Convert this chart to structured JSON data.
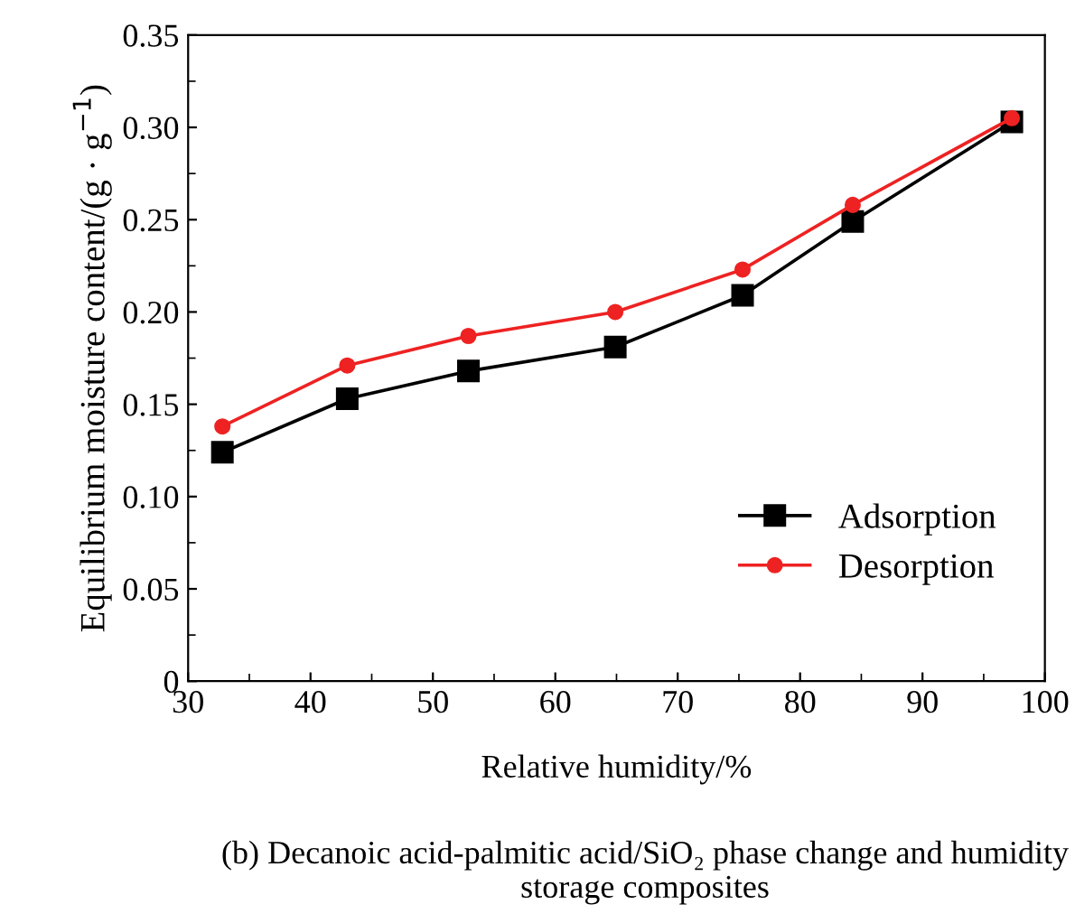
{
  "chart_data": {
    "type": "line",
    "title": "(b) Decanoic acid-palmitic acid/SiO₂ phase change and humidity storage composites",
    "xlabel": "Relative humidity/%",
    "ylabel": "Equilibrium moisture content/(g · g$^{−1}$)",
    "x": [
      32.8,
      43,
      52.9,
      64.9,
      75.3,
      84.3,
      97.3
    ],
    "series": [
      {
        "name": "Adsorption",
        "color": "#000000",
        "marker": "square",
        "values": [
          0.124,
          0.153,
          0.168,
          0.181,
          0.209,
          0.249,
          0.303
        ]
      },
      {
        "name": "Desorption",
        "color": "#ee2222",
        "marker": "circle",
        "values": [
          0.138,
          0.171,
          0.187,
          0.2,
          0.223,
          0.258,
          0.305
        ]
      }
    ],
    "xlim": [
      30,
      100
    ],
    "xticks": [
      30,
      40,
      50,
      60,
      70,
      80,
      90,
      100
    ],
    "ylim": [
      0,
      0.35
    ],
    "yticks": [
      {
        "value": 0,
        "label": "0"
      },
      {
        "value": 0.05,
        "label": "0.05"
      },
      {
        "value": 0.1,
        "label": "0.10"
      },
      {
        "value": 0.15,
        "label": "0.15"
      },
      {
        "value": 0.2,
        "label": "0.20"
      },
      {
        "value": 0.25,
        "label": "0.25"
      },
      {
        "value": 0.3,
        "label": "0.30"
      },
      {
        "value": 0.35,
        "label": "0.35"
      }
    ],
    "grid": false,
    "legend": "bottom right",
    "line_style": "solid"
  }
}
